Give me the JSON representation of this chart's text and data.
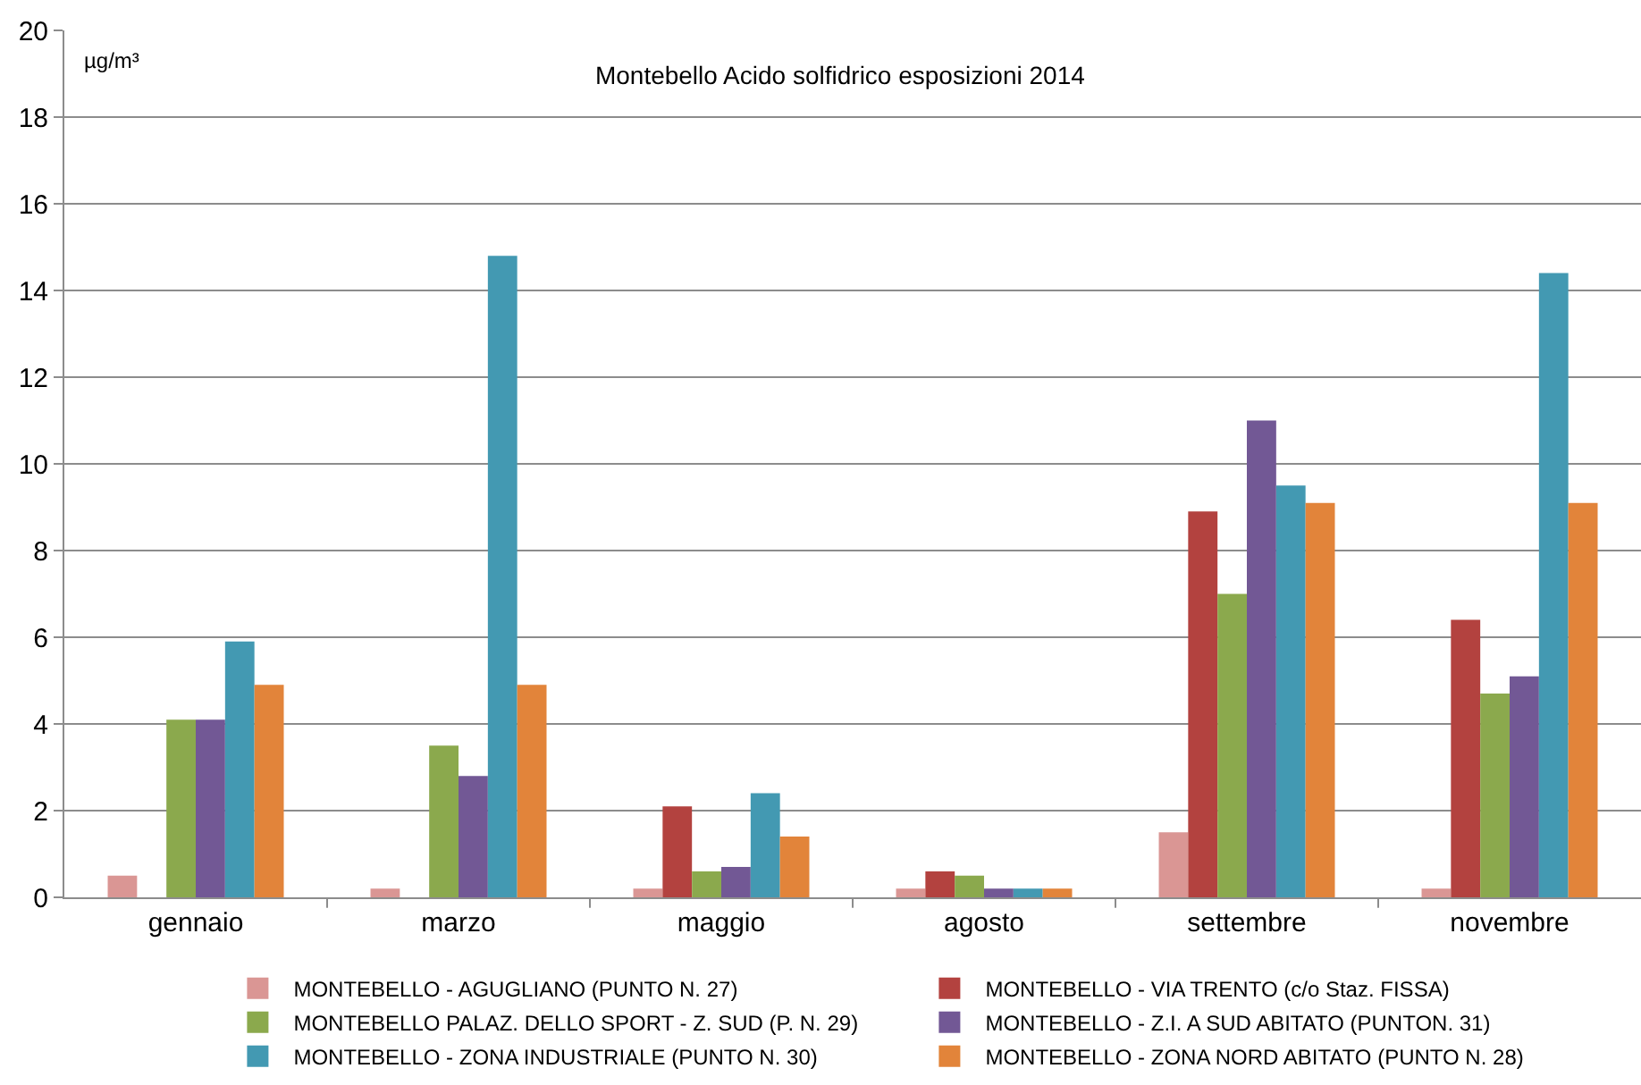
{
  "chart_data": {
    "type": "bar",
    "title": "Montebello Acido solfidrico esposizioni 2014",
    "ylabel": "µg/m³",
    "categories": [
      "gennaio",
      "marzo",
      "maggio",
      "agosto",
      "settembre",
      "novembre"
    ],
    "series": [
      {
        "name": "MONTEBELLO - AGUGLIANO (PUNTO N. 27)",
        "color": "#da9694",
        "values": [
          0.5,
          0.2,
          0.2,
          0.2,
          1.5,
          0.2
        ]
      },
      {
        "name": "MONTEBELLO - VIA TRENTO (c/o Staz. FISSA)",
        "color": "#b3423f",
        "values": [
          null,
          null,
          2.1,
          0.6,
          8.9,
          6.4
        ]
      },
      {
        "name": "MONTEBELLO PALAZ. DELLO SPORT - Z. SUD (P. N. 29)",
        "color": "#8ba94d",
        "values": [
          4.1,
          3.5,
          0.6,
          0.5,
          7.0,
          4.7
        ]
      },
      {
        "name": "MONTEBELLO - Z.I. A SUD ABITATO (PUNTON. 31)",
        "color": "#725895",
        "values": [
          4.1,
          2.8,
          0.7,
          0.2,
          11.0,
          5.1
        ]
      },
      {
        "name": "MONTEBELLO - ZONA INDUSTRIALE (PUNTO N. 30)",
        "color": "#4399b2",
        "values": [
          5.9,
          14.8,
          2.4,
          0.2,
          9.5,
          14.4
        ]
      },
      {
        "name": "MONTEBELLO - ZONA NORD ABITATO (PUNTO N. 28)",
        "color": "#e2843a",
        "values": [
          4.9,
          4.9,
          1.4,
          0.2,
          9.1,
          9.1
        ]
      }
    ],
    "ylim": [
      0,
      20
    ],
    "yticks": [
      0,
      2,
      4,
      6,
      8,
      10,
      12,
      14,
      16,
      18,
      20
    ],
    "grid": "y",
    "legend": "bottom"
  }
}
